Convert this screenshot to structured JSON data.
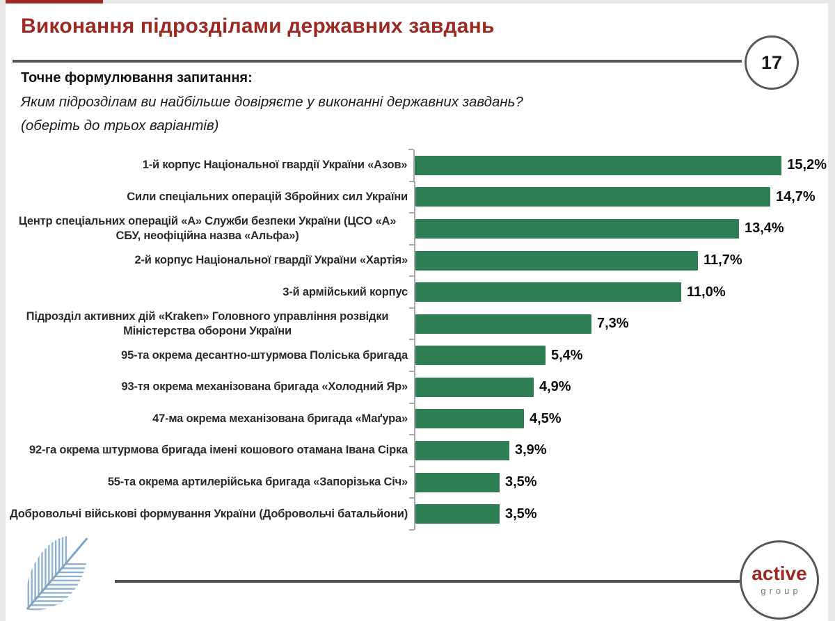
{
  "page": {
    "background": "#e9e9e9",
    "slide_background": "#ffffff"
  },
  "header": {
    "title": "Виконання підрозділами державних завдань",
    "title_color": "#9c2a23",
    "page_number": "17",
    "rule_color": "#57585a"
  },
  "question": {
    "heading": "Точне формулювання запитання:",
    "line1": "Яким підрозділам ви найбільше довіряєте у виконанні державних завдань?",
    "line2": "(оберіть до трьох варіантів)"
  },
  "chart_data": {
    "type": "bar",
    "orientation": "horizontal",
    "title": "",
    "xlabel": "",
    "ylabel": "",
    "xlim": [
      0,
      16
    ],
    "grid": false,
    "legend": false,
    "value_label_position": "end-of-bar",
    "bar_color": "#2e7d55",
    "axis_color": "#a9a9a9",
    "categories": [
      "1-й корпус Національної гвардії України «Азов»",
      "Сили спеціальних операцій Збройних сил України",
      "Центр спеціальних операцій «А» Служби безпеки України (ЦСО «А» СБУ, неофіційна назва «Альфа»)",
      "2-й корпус Національної гвардії України «Хартія»",
      "3-й армійський корпус",
      "Підрозділ активних дій «Kraken» Головного управління розвідки Міністерства оборони України",
      "95-та окрема десантно-штурмова Поліська бригада",
      "93-тя окрема механізована бригада «Холодний Яр»",
      "47-ма окрема механізована бригада «Маґура»",
      "92-га окрема штурмова бригада імені кошового отамана Івана Сірка",
      "55-та окрема артилерійська бригада «Запорізька Січ»",
      "Добровольчі військові формування України (Добровольчі батальйони)"
    ],
    "values": [
      15.2,
      14.7,
      13.4,
      11.7,
      11.0,
      7.3,
      5.4,
      4.9,
      4.5,
      3.9,
      3.5,
      3.5
    ],
    "value_labels": [
      "15,2%",
      "14,7%",
      "13,4%",
      "11,7%",
      "11,0%",
      "7,3%",
      "5,4%",
      "4,9%",
      "4,5%",
      "3,9%",
      "3,5%",
      "3,5%"
    ]
  },
  "footer": {
    "rule_color": "#4f5052",
    "logo_primary": "active",
    "logo_secondary": "group",
    "logo_primary_color": "#9c2a23",
    "logo_secondary_color": "#77787a",
    "leaf_icon_color": "#8fb0ce",
    "leaf_stem_color": "#7ea4c2"
  }
}
